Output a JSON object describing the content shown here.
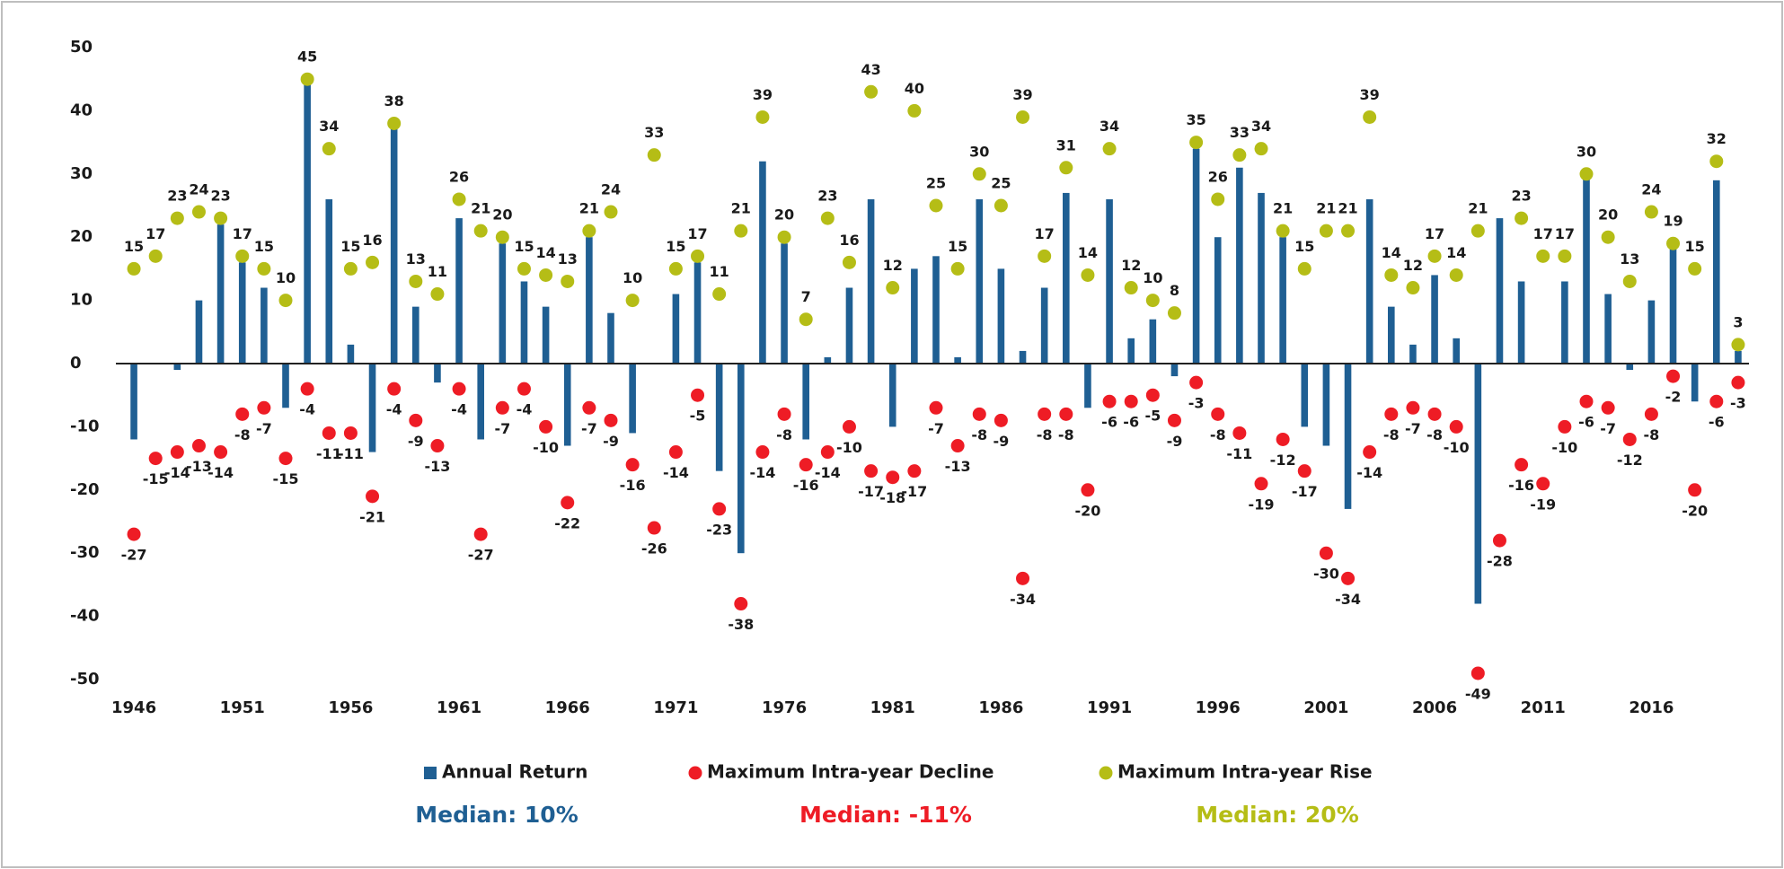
{
  "chart_data": {
    "type": "bar",
    "x": [
      1946,
      1947,
      1948,
      1949,
      1950,
      1951,
      1952,
      1953,
      1954,
      1955,
      1956,
      1957,
      1958,
      1959,
      1960,
      1961,
      1962,
      1963,
      1964,
      1965,
      1966,
      1967,
      1968,
      1969,
      1970,
      1971,
      1972,
      1973,
      1974,
      1975,
      1976,
      1977,
      1978,
      1979,
      1980,
      1981,
      1982,
      1983,
      1984,
      1985,
      1986,
      1987,
      1988,
      1989,
      1990,
      1991,
      1992,
      1993,
      1994,
      1995,
      1996,
      1997,
      1998,
      1999,
      2000,
      2001,
      2002,
      2003,
      2004,
      2005,
      2006,
      2007,
      2008,
      2009,
      2010,
      2011,
      2012,
      2013,
      2014,
      2015,
      2016,
      2017,
      2018,
      2019,
      2020
    ],
    "xlim": [
      1945.5,
      2020.5
    ],
    "xticks": [
      1946,
      1951,
      1956,
      1961,
      1966,
      1971,
      1976,
      1981,
      1986,
      1991,
      1996,
      2001,
      2006,
      2011,
      2016
    ],
    "ylim": [
      -50,
      50
    ],
    "yticks": [
      -50,
      -40,
      -30,
      -20,
      -10,
      0,
      10,
      20,
      30,
      40,
      50
    ],
    "series": [
      {
        "name": "Annual Return",
        "type": "bar",
        "color": "#1f5f93",
        "values": [
          -12,
          0,
          -1,
          10,
          22,
          16,
          12,
          -7,
          45,
          26,
          3,
          -14,
          38,
          9,
          -3,
          23,
          -12,
          19,
          13,
          9,
          -13,
          20,
          8,
          -11,
          0,
          11,
          16,
          -17,
          -30,
          32,
          19,
          -12,
          1,
          12,
          26,
          -10,
          15,
          17,
          1,
          26,
          15,
          2,
          12,
          27,
          -7,
          26,
          4,
          7,
          -2,
          34,
          20,
          31,
          27,
          20,
          -10,
          -13,
          -23,
          26,
          9,
          3,
          14,
          4,
          -38,
          23,
          13,
          0,
          13,
          30,
          11,
          -1,
          10,
          19,
          -6,
          29,
          2
        ]
      },
      {
        "name": "Maximum Intra-year Decline",
        "type": "scatter",
        "color": "#ee1c25",
        "label_side": "below",
        "values": [
          -27,
          -15,
          -14,
          -13,
          -14,
          -8,
          -7,
          -15,
          -4,
          -11,
          -11,
          -21,
          -4,
          -9,
          -13,
          -4,
          -27,
          -7,
          -4,
          -10,
          -22,
          -7,
          -9,
          -16,
          -26,
          -14,
          -5,
          -23,
          -38,
          -14,
          -8,
          -16,
          -14,
          -10,
          -17,
          -18,
          -17,
          -7,
          -13,
          -8,
          -9,
          -34,
          -8,
          -8,
          -20,
          -6,
          -6,
          -5,
          -9,
          -3,
          -8,
          -11,
          -19,
          -12,
          -17,
          -30,
          -34,
          -14,
          -8,
          -7,
          -8,
          -10,
          -49,
          -28,
          -16,
          -19,
          -10,
          -6,
          -7,
          -12,
          -8,
          -2,
          -20,
          -6,
          -3
        ]
      },
      {
        "name": "Maximum Intra-year Rise",
        "type": "scatter",
        "color": "#b5bd16",
        "label_side": "above",
        "values": [
          15,
          17,
          23,
          24,
          23,
          17,
          15,
          10,
          45,
          34,
          15,
          16,
          38,
          13,
          11,
          26,
          21,
          20,
          15,
          14,
          13,
          21,
          24,
          10,
          33,
          15,
          17,
          11,
          21,
          39,
          20,
          7,
          23,
          16,
          43,
          12,
          40,
          25,
          15,
          30,
          25,
          39,
          17,
          31,
          14,
          34,
          12,
          10,
          8,
          35,
          26,
          33,
          34,
          21,
          15,
          21,
          21,
          39,
          14,
          12,
          17,
          14,
          21,
          null,
          23,
          17,
          17,
          30,
          20,
          13,
          24,
          19,
          15,
          32,
          3
        ]
      }
    ],
    "annotations": [
      {
        "text": "Median:  10%",
        "color": "#1f5f93"
      },
      {
        "text": "Median:  -11%",
        "color": "#ee1c25"
      },
      {
        "text": "Median:  20%",
        "color": "#b5bd16"
      }
    ]
  }
}
